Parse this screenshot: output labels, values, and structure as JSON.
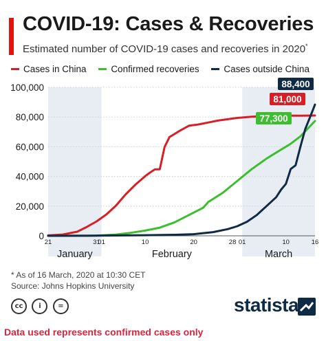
{
  "header": {
    "title": "COVID-19: Cases & Recoveries",
    "subtitle": "Estimated number of COVID-19 cases and recoveries in 2020",
    "subtitle_mark": "*"
  },
  "legend": [
    {
      "label": "Cases in China",
      "color": "#d61f26"
    },
    {
      "label": "Confirmed recoveries",
      "color": "#3bbf2e"
    },
    {
      "label": "Cases outside China",
      "color": "#0f2a44"
    }
  ],
  "chart_data": {
    "type": "line",
    "x_unit": "date (2020)",
    "xlim": [
      "2020-01-21",
      "2020-03-16"
    ],
    "ylim": [
      0,
      100000
    ],
    "yticks": [
      {
        "value": 0,
        "label": "0"
      },
      {
        "value": 20000,
        "label": "20,000"
      },
      {
        "value": 40000,
        "label": "40,000"
      },
      {
        "value": 60000,
        "label": "60,000"
      },
      {
        "value": 80000,
        "label": "80,000"
      },
      {
        "value": 100000,
        "label": "100,000"
      }
    ],
    "xticks": [
      {
        "date": "2020-01-21",
        "label": "21"
      },
      {
        "date": "2020-01-31",
        "label": "31"
      },
      {
        "date": "2020-02-01",
        "label": "01"
      },
      {
        "date": "2020-02-10",
        "label": "10"
      },
      {
        "date": "2020-02-20",
        "label": "20"
      },
      {
        "date": "2020-02-28",
        "label": "28"
      },
      {
        "date": "2020-03-01",
        "label": "01"
      },
      {
        "date": "2020-03-10",
        "label": "10"
      },
      {
        "date": "2020-03-16",
        "label": "16"
      }
    ],
    "months": [
      {
        "label": "January",
        "start": "2020-01-21",
        "end": "2020-01-31",
        "shaded": true
      },
      {
        "label": "February",
        "start": "2020-02-01",
        "end": "2020-02-29",
        "shaded": false
      },
      {
        "label": "March",
        "start": "2020-03-01",
        "end": "2020-03-16",
        "shaded": true
      }
    ],
    "grid": true,
    "series": [
      {
        "name": "Cases in China",
        "color": "#d61f26",
        "end_label": "81,000",
        "points": [
          [
            "2020-01-21",
            300
          ],
          [
            "2020-01-24",
            900
          ],
          [
            "2020-01-27",
            2800
          ],
          [
            "2020-01-29",
            6000
          ],
          [
            "2020-01-31",
            9700
          ],
          [
            "2020-02-02",
            14400
          ],
          [
            "2020-02-04",
            20400
          ],
          [
            "2020-02-06",
            28000
          ],
          [
            "2020-02-08",
            34500
          ],
          [
            "2020-02-10",
            40200
          ],
          [
            "2020-02-11",
            42600
          ],
          [
            "2020-02-12",
            44700
          ],
          [
            "2020-02-13",
            44800
          ],
          [
            "2020-02-14",
            59800
          ],
          [
            "2020-02-15",
            66500
          ],
          [
            "2020-02-17",
            70500
          ],
          [
            "2020-02-19",
            74100
          ],
          [
            "2020-02-21",
            75000
          ],
          [
            "2020-02-23",
            76300
          ],
          [
            "2020-02-25",
            77600
          ],
          [
            "2020-02-29",
            79400
          ],
          [
            "2020-03-03",
            80200
          ],
          [
            "2020-03-07",
            80700
          ],
          [
            "2020-03-10",
            80900
          ],
          [
            "2020-03-13",
            80900
          ],
          [
            "2020-03-16",
            81000
          ]
        ]
      },
      {
        "name": "Confirmed recoveries",
        "color": "#3bbf2e",
        "end_label": "77,300",
        "points": [
          [
            "2020-01-21",
            0
          ],
          [
            "2020-01-28",
            100
          ],
          [
            "2020-01-31",
            200
          ],
          [
            "2020-02-04",
            900
          ],
          [
            "2020-02-07",
            2000
          ],
          [
            "2020-02-10",
            3500
          ],
          [
            "2020-02-13",
            5500
          ],
          [
            "2020-02-16",
            9000
          ],
          [
            "2020-02-19",
            14000
          ],
          [
            "2020-02-22",
            19000
          ],
          [
            "2020-02-23",
            22800
          ],
          [
            "2020-02-26",
            29000
          ],
          [
            "2020-02-29",
            37000
          ],
          [
            "2020-03-03",
            45000
          ],
          [
            "2020-03-06",
            52000
          ],
          [
            "2020-03-09",
            58000
          ],
          [
            "2020-03-11",
            62000
          ],
          [
            "2020-03-13",
            67000
          ],
          [
            "2020-03-16",
            77300
          ]
        ]
      },
      {
        "name": "Cases outside China",
        "color": "#0f2a44",
        "end_label": "88,400",
        "points": [
          [
            "2020-01-21",
            0
          ],
          [
            "2020-01-31",
            100
          ],
          [
            "2020-02-10",
            400
          ],
          [
            "2020-02-16",
            700
          ],
          [
            "2020-02-20",
            1100
          ],
          [
            "2020-02-24",
            2500
          ],
          [
            "2020-02-27",
            4500
          ],
          [
            "2020-02-29",
            6500
          ],
          [
            "2020-03-02",
            9500
          ],
          [
            "2020-03-04",
            14000
          ],
          [
            "2020-03-06",
            20000
          ],
          [
            "2020-03-08",
            26000
          ],
          [
            "2020-03-09",
            31000
          ],
          [
            "2020-03-10",
            35000
          ],
          [
            "2020-03-11",
            45000
          ],
          [
            "2020-03-12",
            47500
          ],
          [
            "2020-03-13",
            60000
          ],
          [
            "2020-03-14",
            72000
          ],
          [
            "2020-03-15",
            80000
          ],
          [
            "2020-03-16",
            88400
          ]
        ]
      }
    ]
  },
  "footnote": {
    "line1": "* As of 16 March, 2020 at 10:30 CET",
    "line2": "Source: Johns Hopkins University"
  },
  "license_icons": [
    {
      "icon": "cc-icon",
      "text": "cc"
    },
    {
      "icon": "attribution-icon",
      "text": "i"
    },
    {
      "icon": "no-derivatives-icon",
      "text": "="
    }
  ],
  "brand": {
    "name": "statista"
  },
  "bottom_note": "Data used represents confirmed cases only"
}
